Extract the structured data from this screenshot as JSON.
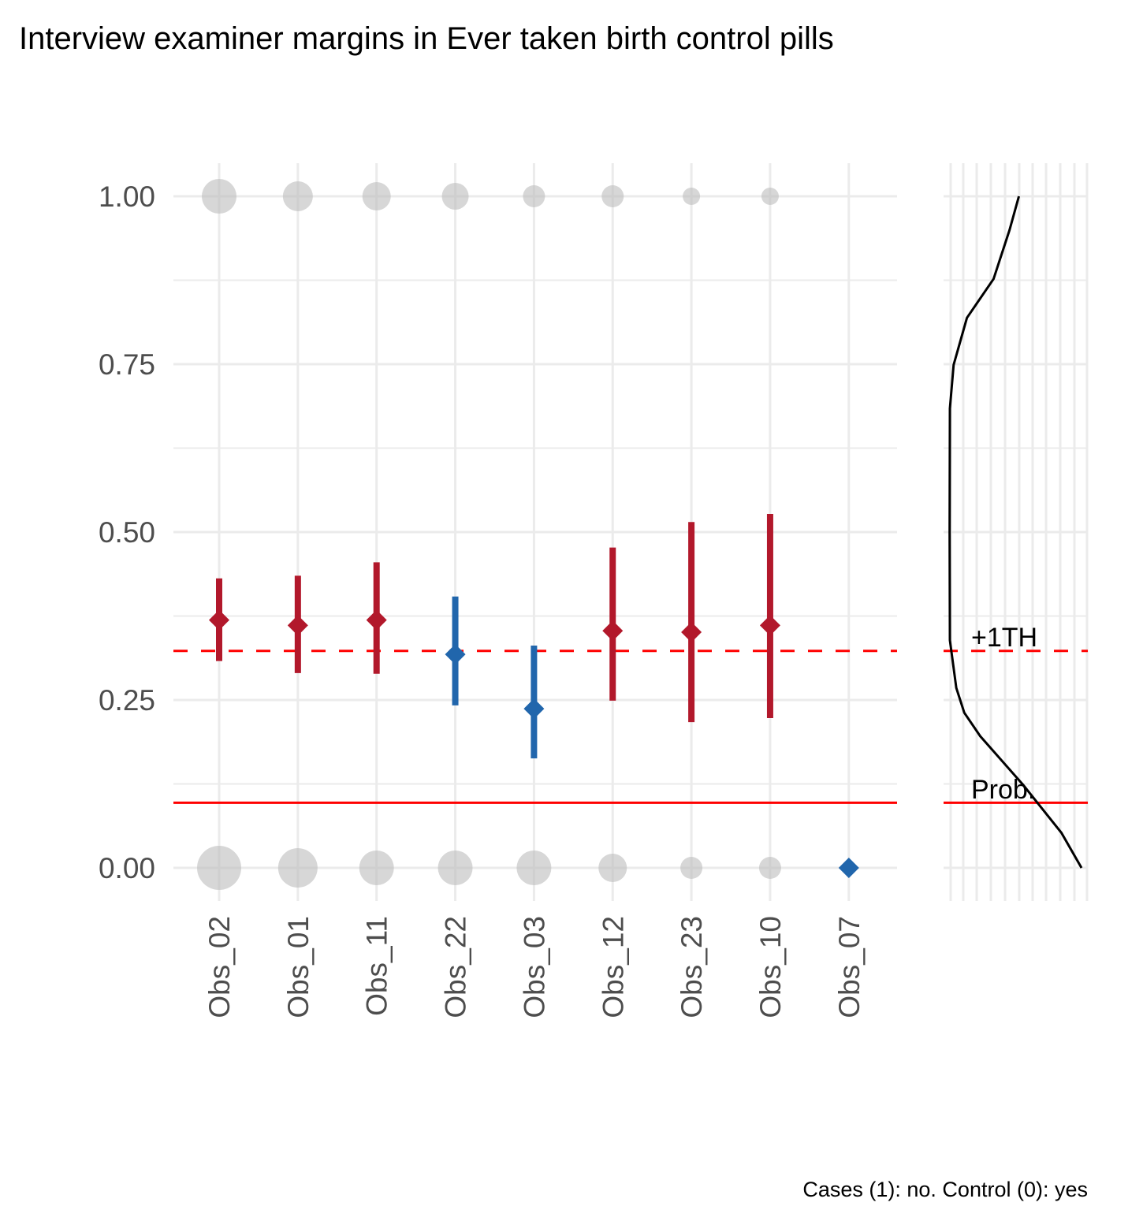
{
  "chart_data": {
    "type": "scatter",
    "title": "Interview examiner margins in Ever taken birth control pills",
    "caption": "Cases (1): no. Control (0): yes",
    "xlabel": "",
    "ylabel": "",
    "ylim": [
      0,
      1
    ],
    "yticks": [
      {
        "value": 0.0,
        "label": "0.00"
      },
      {
        "value": 0.25,
        "label": "0.25"
      },
      {
        "value": 0.5,
        "label": "0.50"
      },
      {
        "value": 0.75,
        "label": "0.75"
      },
      {
        "value": 1.0,
        "label": "1.00"
      }
    ],
    "grid": true,
    "categories": [
      "Obs_02",
      "Obs_01",
      "Obs_11",
      "Obs_22",
      "Obs_03",
      "Obs_12",
      "Obs_23",
      "Obs_10",
      "Obs_07"
    ],
    "estimates": [
      {
        "name": "Obs_02",
        "value": 0.369,
        "lower": 0.308,
        "upper": 0.431,
        "group": "above"
      },
      {
        "name": "Obs_01",
        "value": 0.361,
        "lower": 0.29,
        "upper": 0.435,
        "group": "above"
      },
      {
        "name": "Obs_11",
        "value": 0.369,
        "lower": 0.289,
        "upper": 0.455,
        "group": "above"
      },
      {
        "name": "Obs_22",
        "value": 0.318,
        "lower": 0.242,
        "upper": 0.404,
        "group": "below"
      },
      {
        "name": "Obs_03",
        "value": 0.237,
        "lower": 0.163,
        "upper": 0.331,
        "group": "below"
      },
      {
        "name": "Obs_12",
        "value": 0.353,
        "lower": 0.249,
        "upper": 0.477,
        "group": "above"
      },
      {
        "name": "Obs_23",
        "value": 0.351,
        "lower": 0.217,
        "upper": 0.515,
        "group": "above"
      },
      {
        "name": "Obs_10",
        "value": 0.361,
        "lower": 0.223,
        "upper": 0.527,
        "group": "above"
      },
      {
        "name": "Obs_07",
        "value": 0.0,
        "lower": null,
        "upper": null,
        "group": "below"
      }
    ],
    "counts_cases_1": [
      22,
      19,
      18,
      17,
      14,
      14,
      11,
      11,
      0
    ],
    "counts_controls_0": [
      28,
      25,
      22,
      22,
      22,
      18,
      14,
      14,
      0
    ],
    "reference_lines": [
      {
        "label": "+1TH",
        "value": 0.323,
        "style": "dashed",
        "color": "#ff0000"
      },
      {
        "label": "Prob.",
        "value": 0.097,
        "style": "solid",
        "color": "#ff0000"
      }
    ],
    "density": {
      "prob": [
        1.0,
        0.95,
        0.877,
        0.819,
        0.749,
        0.684,
        0.5,
        0.339,
        0.268,
        0.231,
        0.196,
        0.124,
        0.052,
        0.0
      ],
      "density": [
        0.53,
        0.46,
        0.34,
        0.14,
        0.04,
        0.012,
        0.01,
        0.012,
        0.06,
        0.12,
        0.24,
        0.56,
        0.85,
        1.0
      ]
    },
    "colors": {
      "above": "#b2182b",
      "below": "#2166ac",
      "bubble": "#bdbdbd",
      "grid": "#ebebeb",
      "ref": "#ff0000"
    }
  }
}
